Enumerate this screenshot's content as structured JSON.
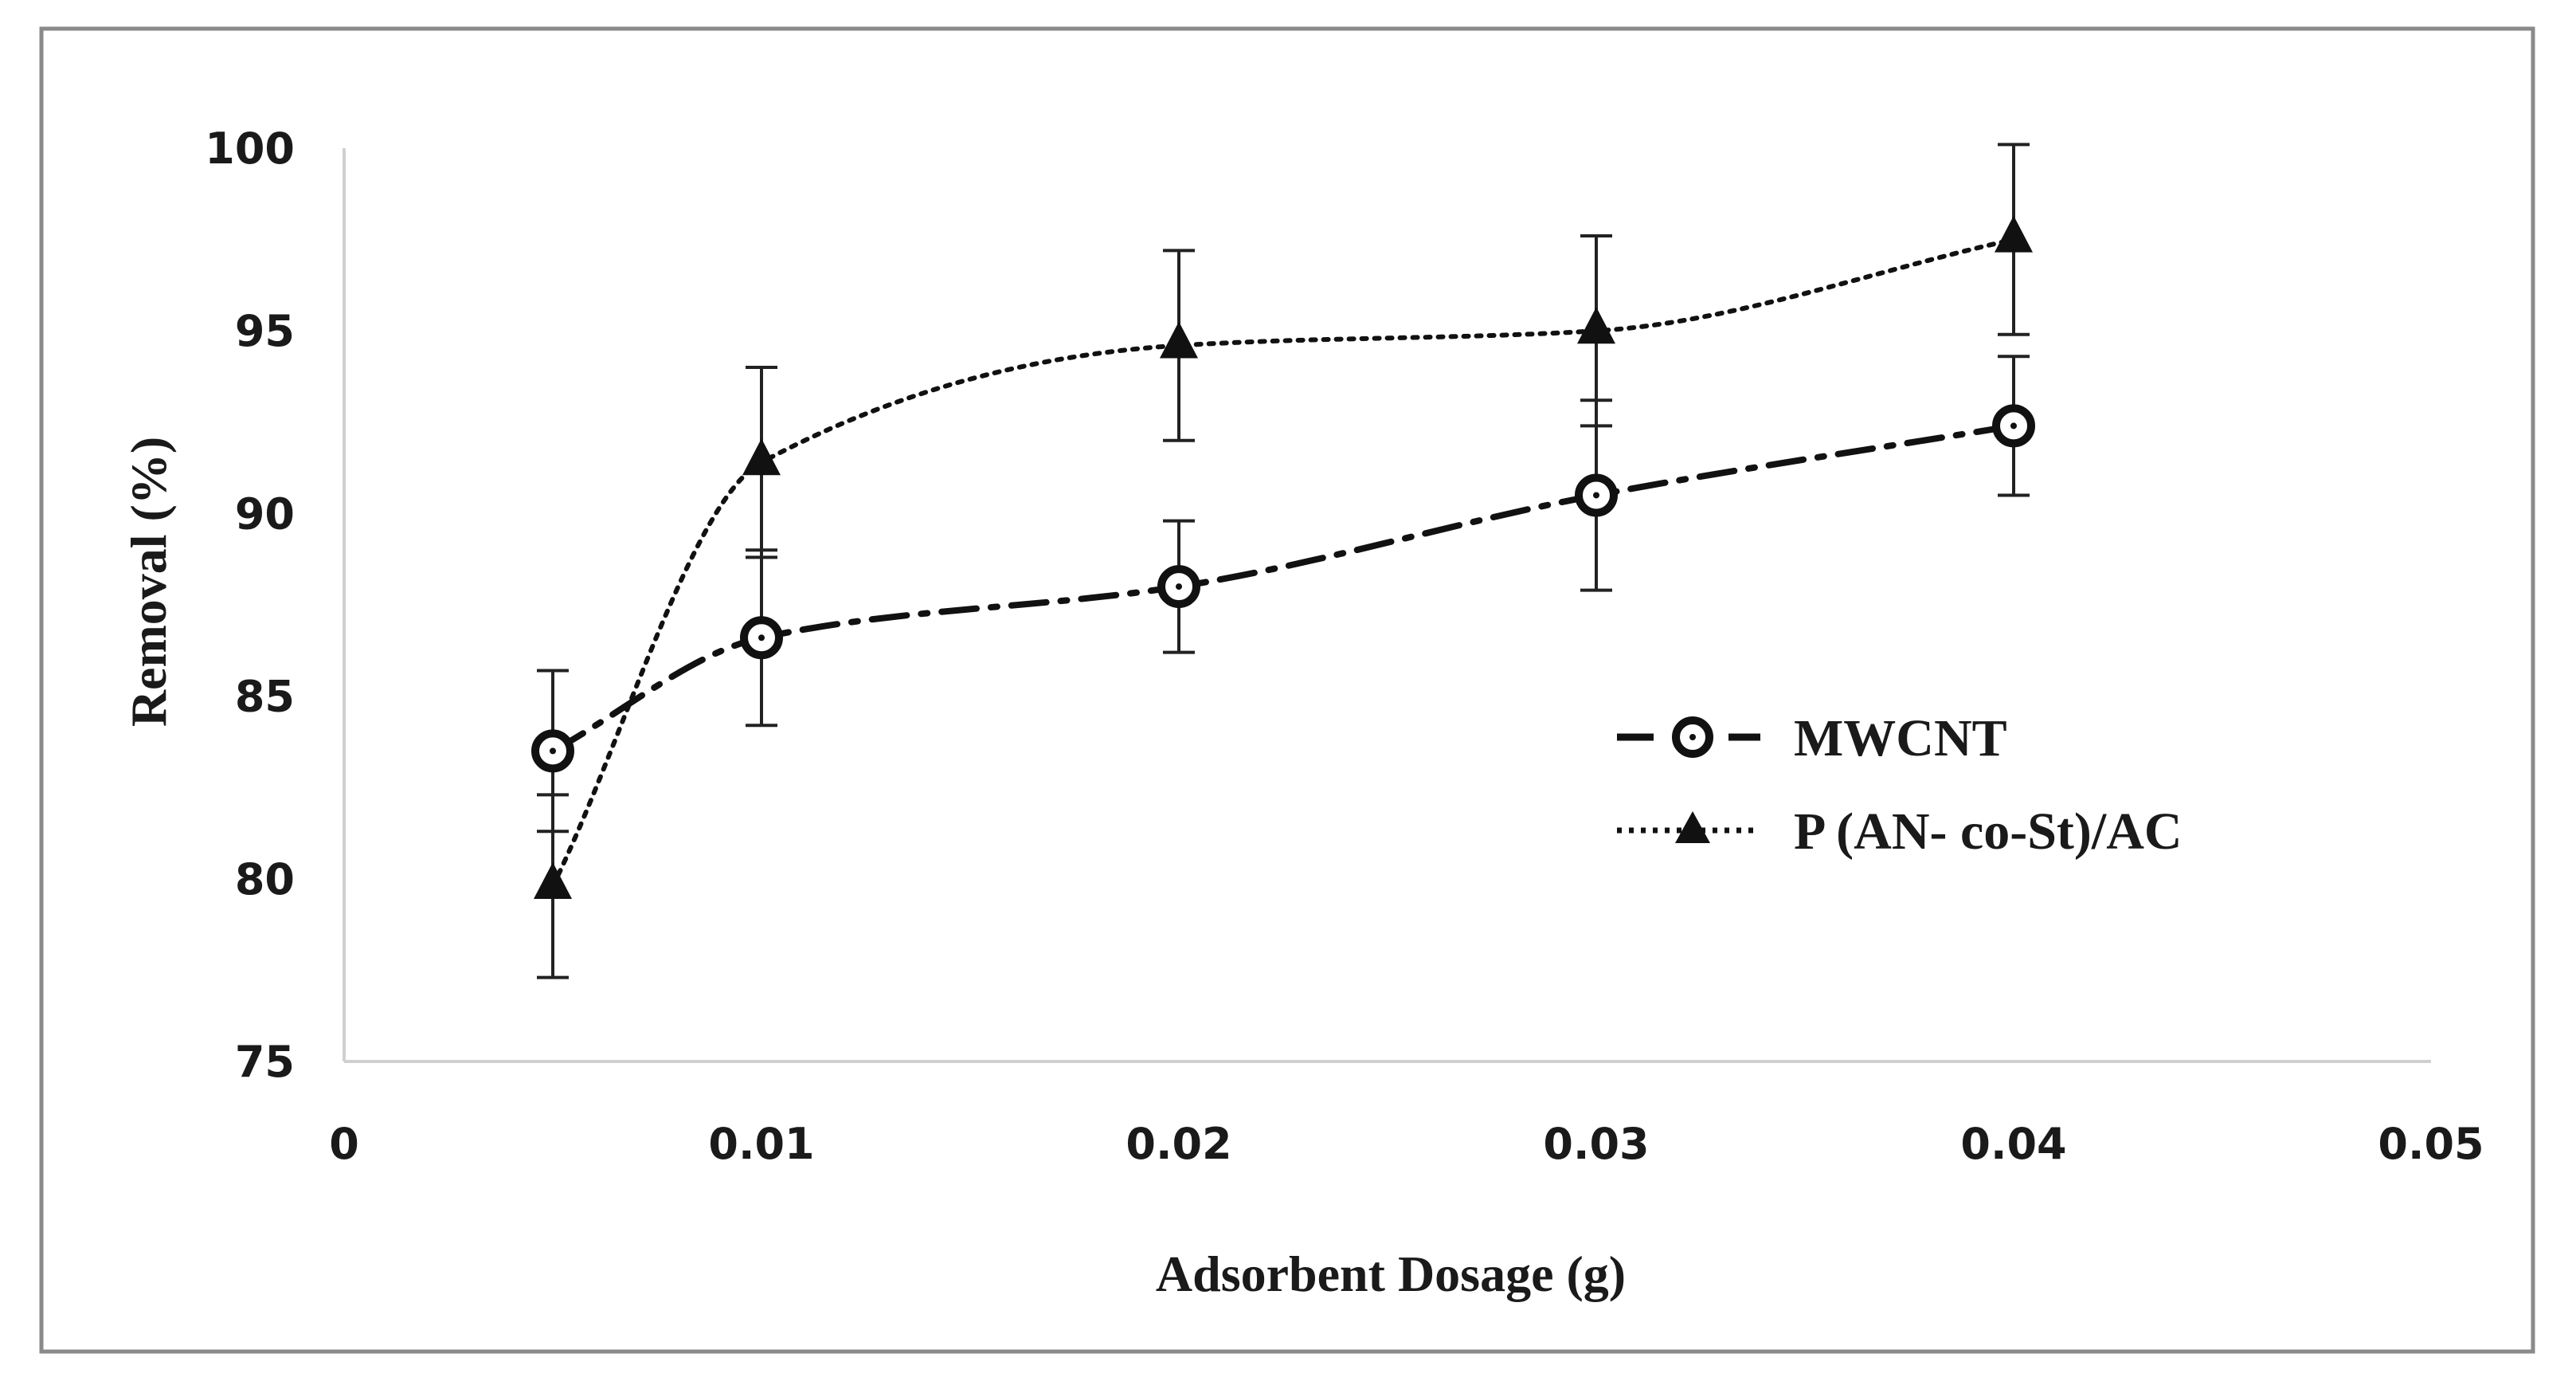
{
  "chart_data": {
    "type": "line",
    "title": "",
    "xlabel": "Adsorbent Dosage (g)",
    "ylabel": "Removal (%)",
    "xlim": [
      0,
      0.05
    ],
    "ylim": [
      75,
      100
    ],
    "xticks": [
      "0",
      "0.01",
      "0.02",
      "0.03",
      "0.04",
      "0.05"
    ],
    "xtick_values": [
      0,
      0.01,
      0.02,
      0.03,
      0.04,
      0.05
    ],
    "yticks": [
      "75",
      "80",
      "85",
      "90",
      "95",
      "100"
    ],
    "ytick_values": [
      75,
      80,
      85,
      90,
      95,
      100
    ],
    "grid": false,
    "legend_position": "right",
    "series": [
      {
        "name": "MWCNT",
        "marker": "circle",
        "line_style": "dash-dot",
        "color": "#111111",
        "x": [
          0.005,
          0.01,
          0.02,
          0.03,
          0.04
        ],
        "y": [
          83.5,
          86.6,
          88.0,
          90.5,
          92.4
        ],
        "error": [
          2.2,
          2.4,
          1.8,
          2.6,
          1.9
        ]
      },
      {
        "name": "P (AN- co-St)/AC",
        "marker": "triangle",
        "line_style": "dotted",
        "color": "#111111",
        "x": [
          0.005,
          0.01,
          0.02,
          0.03,
          0.04
        ],
        "y": [
          79.8,
          91.4,
          94.6,
          95.0,
          97.5
        ],
        "error": [
          2.5,
          2.6,
          2.6,
          2.6,
          2.6
        ]
      }
    ]
  }
}
